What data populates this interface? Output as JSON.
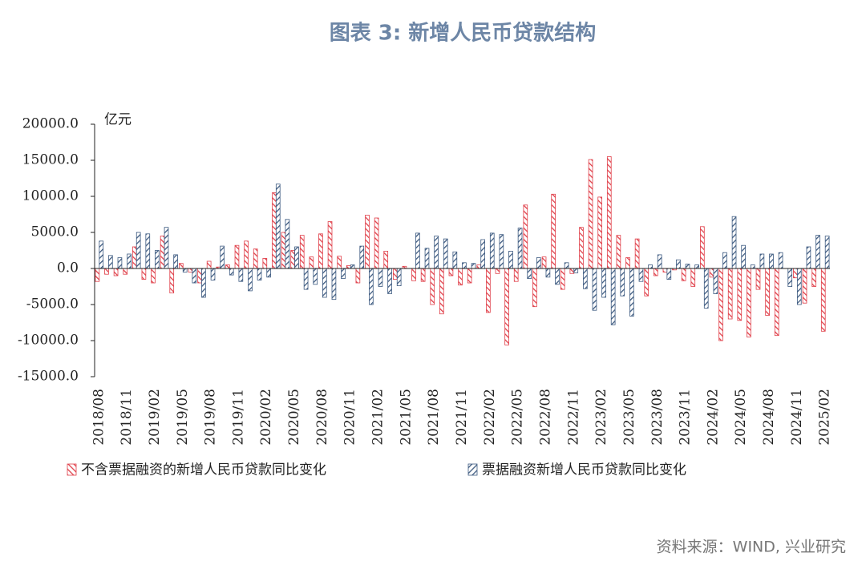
{
  "chart_data": {
    "type": "bar",
    "title": "图表 3:   新增人民币贷款结构",
    "unit": "亿元",
    "source": "资料来源：WIND, 兴业研究",
    "categories": [
      "2018/08",
      null,
      null,
      "2018/11",
      null,
      null,
      "2019/02",
      null,
      null,
      "2019/05",
      null,
      null,
      "2019/08",
      null,
      null,
      "2019/11",
      null,
      null,
      "2020/02",
      null,
      null,
      "2020/05",
      null,
      null,
      "2020/08",
      null,
      null,
      "2020/11",
      null,
      null,
      "2021/02",
      null,
      null,
      "2021/05",
      null,
      null,
      "2021/08",
      null,
      null,
      "2021/11",
      null,
      null,
      "2022/02",
      null,
      null,
      "2022/05",
      null,
      null,
      "2022/08",
      null,
      null,
      "2022/11",
      null,
      null,
      "2023/02",
      null,
      null,
      "2023/05",
      null,
      null,
      "2023/08",
      null,
      null,
      "2023/11",
      null,
      null,
      "2024/02",
      null,
      null,
      "2024/05",
      null,
      null,
      "2024/08",
      null,
      null,
      "2024/11",
      null,
      null,
      "2025/02"
    ],
    "series": [
      {
        "name": "不含票据融资的新增人民币贷款同比变化",
        "color": "#e0404a",
        "values": [
          -1800,
          -800,
          -1000,
          -800,
          3000,
          -1500,
          -2000,
          4500,
          -3400,
          700,
          -500,
          -2000,
          1000,
          200,
          500,
          3200,
          3800,
          2700,
          1400,
          10500,
          5000,
          2500,
          4600,
          1600,
          4800,
          6500,
          1700,
          400,
          -2000,
          7400,
          7000,
          2400,
          -1500,
          300,
          -1700,
          -1800,
          -5000,
          -6300,
          -1000,
          -2300,
          -2000,
          500,
          -6100,
          -700,
          -10600,
          -1800,
          8800,
          -5300,
          1600,
          10300,
          -2900,
          -700,
          5700,
          15100,
          9900,
          15500,
          4600,
          1500,
          4100,
          -3800,
          -1000,
          -500,
          -200,
          -1700,
          -2500,
          5800,
          -1200,
          -10000,
          -7000,
          -7200,
          -9500,
          -2900,
          -6500,
          -9300,
          0,
          -1300,
          -4800,
          -2500,
          -8700
        ]
      },
      {
        "name": "票据融资新增人民币贷款同比变化",
        "color": "#3d5a80",
        "values": [
          3800,
          1800,
          1500,
          2000,
          5000,
          4800,
          2500,
          5700,
          1900,
          -500,
          -2000,
          -4000,
          -1600,
          3100,
          -900,
          -1800,
          -3100,
          -1600,
          -1200,
          11700,
          6800,
          3000,
          -2900,
          -2200,
          -4000,
          -4300,
          -1400,
          500,
          3100,
          -5000,
          -2500,
          -3500,
          -2400,
          0,
          4900,
          2800,
          4500,
          4100,
          2300,
          800,
          700,
          4000,
          4900,
          4700,
          2400,
          5600,
          -1400,
          1500,
          -1200,
          -2200,
          800,
          -600,
          -2800,
          -5800,
          -4000,
          -7800,
          -3800,
          -6600,
          -1800,
          500,
          1900,
          -1500,
          1200,
          600,
          500,
          -5500,
          -3500,
          2200,
          7200,
          3200,
          500,
          2000,
          2000,
          2200,
          -2500,
          -5000,
          3000,
          4600,
          4500
        ]
      }
    ],
    "ylim": [
      -15000,
      20000
    ],
    "yticks": [
      {
        "value": -15000,
        "label": "-15000.0"
      },
      {
        "value": -10000,
        "label": "-10000.0"
      },
      {
        "value": -5000,
        "label": "-5000.0"
      },
      {
        "value": 0,
        "label": "0.0"
      },
      {
        "value": 5000,
        "label": "5000.0"
      },
      {
        "value": 10000,
        "label": "10000.0"
      },
      {
        "value": 15000,
        "label": "15000.0"
      },
      {
        "value": 20000,
        "label": "20000.0"
      }
    ],
    "grid": false
  }
}
